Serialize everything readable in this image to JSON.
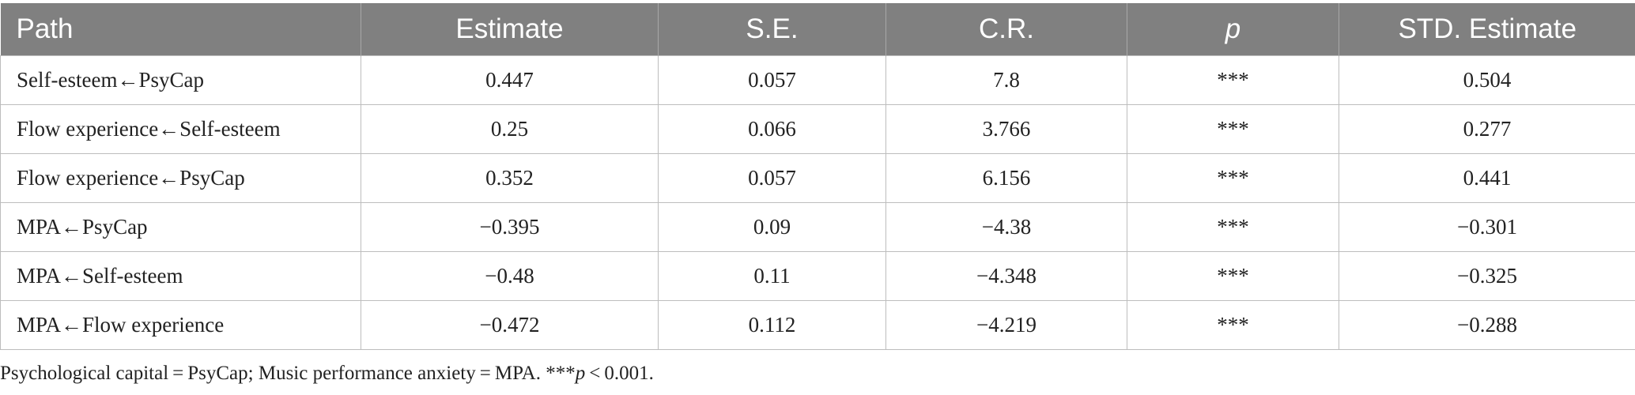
{
  "table": {
    "headers": {
      "path": "Path",
      "estimate": "Estimate",
      "se": "S.E.",
      "cr": "C.R.",
      "p": "p",
      "std_estimate": "STD. Estimate"
    },
    "rows": [
      {
        "path": "Self-esteem←PsyCap",
        "estimate": "0.447",
        "se": "0.057",
        "cr": "7.8",
        "p": "***",
        "std_estimate": "0.504"
      },
      {
        "path": "Flow experience←Self-esteem",
        "estimate": "0.25",
        "se": "0.066",
        "cr": "3.766",
        "p": "***",
        "std_estimate": "0.277"
      },
      {
        "path": "Flow experience←PsyCap",
        "estimate": "0.352",
        "se": "0.057",
        "cr": "6.156",
        "p": "***",
        "std_estimate": "0.441"
      },
      {
        "path": "MPA←PsyCap",
        "estimate": "−0.395",
        "se": "0.09",
        "cr": "−4.38",
        "p": "***",
        "std_estimate": "−0.301"
      },
      {
        "path": "MPA←Self-esteem",
        "estimate": "−0.48",
        "se": "0.11",
        "cr": "−4.348",
        "p": "***",
        "std_estimate": "−0.325"
      },
      {
        "path": "MPA←Flow experience",
        "estimate": "−0.472",
        "se": "0.112",
        "cr": "−4.219",
        "p": "***",
        "std_estimate": "−0.288"
      }
    ]
  },
  "footnote": {
    "definitions": "Psychological capital = PsyCap; Music performance anxiety = MPA. ***",
    "p_symbol": "p",
    "threshold": " < 0.001."
  },
  "colors": {
    "header_bg": "#808080",
    "header_text": "#ffffff",
    "grid": "#bdbdbd",
    "body_text": "#222222"
  }
}
